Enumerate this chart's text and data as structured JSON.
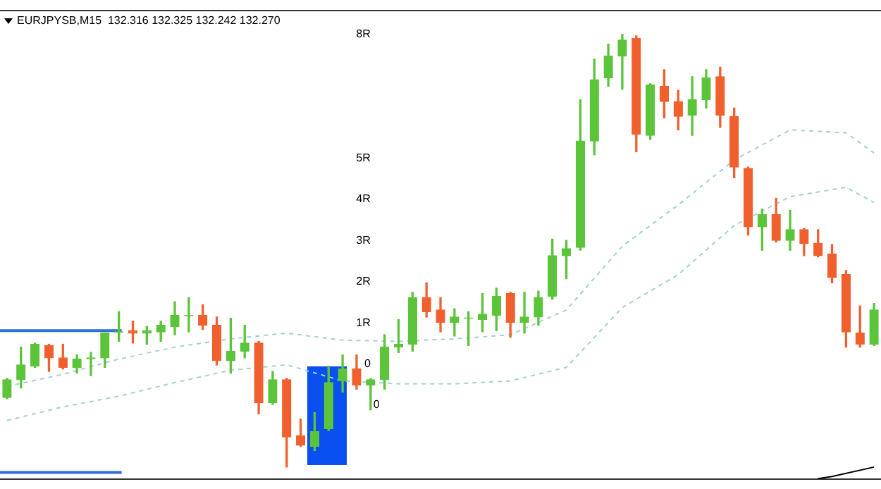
{
  "chart_data": {
    "type": "candlestick",
    "title": "EURJPYSB,M15  132.316 132.325 132.242 132.270",
    "categories": [
      null,
      null,
      null,
      null,
      null,
      null,
      null,
      null,
      null,
      null,
      null,
      null,
      null,
      null,
      null,
      null,
      null,
      null,
      null,
      null,
      null,
      null,
      null,
      null,
      null,
      null,
      null,
      null,
      null,
      null,
      null,
      null,
      null,
      null,
      null,
      null,
      null,
      null,
      null,
      null,
      null,
      null,
      null,
      null,
      null,
      null,
      null,
      null,
      null,
      null,
      null,
      null,
      null,
      null,
      null,
      null,
      null,
      null,
      null,
      null,
      null,
      null,
      null
    ],
    "ohlc": [
      [
        -0.81,
        -0.35,
        -0.84,
        -0.38
      ],
      [
        -0.38,
        0.41,
        -0.58,
        -0.02
      ],
      [
        -0.05,
        0.51,
        -0.08,
        0.48
      ],
      [
        0.45,
        0.48,
        -0.18,
        0.15
      ],
      [
        0.15,
        0.48,
        -0.12,
        -0.08
      ],
      [
        -0.08,
        0.22,
        -0.22,
        0.12
      ],
      [
        0.13,
        0.28,
        -0.28,
        0.15
      ],
      [
        0.15,
        0.75,
        -0.08,
        0.75
      ],
      [
        0.77,
        1.27,
        0.55,
        0.78
      ],
      [
        0.81,
        1.04,
        0.51,
        0.75
      ],
      [
        0.75,
        0.91,
        0.48,
        0.81
      ],
      [
        0.78,
        1.04,
        0.55,
        0.94
      ],
      [
        0.91,
        1.51,
        0.71,
        1.18
      ],
      [
        1.17,
        1.61,
        0.78,
        1.18
      ],
      [
        1.18,
        1.44,
        0.84,
        0.94
      ],
      [
        0.94,
        1.14,
        -0.02,
        0.08
      ],
      [
        0.08,
        1.11,
        -0.22,
        0.31
      ],
      [
        0.31,
        0.94,
        0.15,
        0.51
      ],
      [
        0.51,
        0.55,
        -1.21,
        -0.94
      ],
      [
        -0.94,
        -0.18,
        -0.98,
        -0.38
      ],
      [
        -0.38,
        -0.35,
        -2.5,
        -1.77
      ],
      [
        -1.74,
        -1.34,
        -2.0,
        -1.97
      ],
      [
        -2.0,
        -1.18,
        -2.1,
        -1.64
      ],
      [
        -1.57,
        -0.05,
        -1.61,
        -0.45
      ],
      [
        -0.41,
        0.22,
        -0.68,
        -0.12
      ],
      [
        -0.12,
        0.22,
        -0.61,
        -0.51
      ],
      [
        -0.51,
        -0.35,
        -1.11,
        -0.38
      ],
      [
        -0.38,
        0.71,
        -0.61,
        0.41
      ],
      [
        0.41,
        1.08,
        0.28,
        0.48
      ],
      [
        0.48,
        1.74,
        0.31,
        1.61
      ],
      [
        1.61,
        1.97,
        1.14,
        1.27
      ],
      [
        1.31,
        1.61,
        0.78,
        1.01
      ],
      [
        1.01,
        1.34,
        0.68,
        1.14
      ],
      [
        1.11,
        1.27,
        0.45,
        1.12
      ],
      [
        1.08,
        1.71,
        0.78,
        1.21
      ],
      [
        1.18,
        1.84,
        0.81,
        1.64
      ],
      [
        1.71,
        1.74,
        0.65,
        1.01
      ],
      [
        1.01,
        1.74,
        0.75,
        1.14
      ],
      [
        1.14,
        1.77,
        0.94,
        1.61
      ],
      [
        1.64,
        3.03,
        1.57,
        2.63
      ],
      [
        2.63,
        3.0,
        2.07,
        2.8
      ],
      [
        2.83,
        6.41,
        2.76,
        5.41
      ],
      [
        5.41,
        7.4,
        5.08,
        6.9
      ],
      [
        6.94,
        7.76,
        6.74,
        7.47
      ],
      [
        7.47,
        8.0,
        6.67,
        7.86
      ],
      [
        7.9,
        7.96,
        5.15,
        5.58
      ],
      [
        5.55,
        6.8,
        5.45,
        6.77
      ],
      [
        6.74,
        7.14,
        5.97,
        6.37
      ],
      [
        6.37,
        6.64,
        5.68,
        6.01
      ],
      [
        6.04,
        6.97,
        5.55,
        6.41
      ],
      [
        6.41,
        7.14,
        6.21,
        6.94
      ],
      [
        6.97,
        7.2,
        5.74,
        6.04
      ],
      [
        6.01,
        6.21,
        4.52,
        4.78
      ],
      [
        4.75,
        4.78,
        3.13,
        3.33
      ],
      [
        3.33,
        3.76,
        2.76,
        3.63
      ],
      [
        3.63,
        4.02,
        2.96,
        3.0
      ],
      [
        3.0,
        3.73,
        2.76,
        3.26
      ],
      [
        3.26,
        3.29,
        2.63,
        2.93
      ],
      [
        2.93,
        3.26,
        2.6,
        2.63
      ],
      [
        2.67,
        2.9,
        1.97,
        2.1
      ],
      [
        2.17,
        2.27,
        0.41,
        0.78
      ],
      [
        0.75,
        1.41,
        0.41,
        0.48
      ],
      [
        0.48,
        1.47,
        0.45,
        1.31
      ]
    ],
    "colors": [
      "#5cc43a",
      "#5cc43a",
      "#5cc43a",
      "#f0602e",
      "#f0602e",
      "#5cc43a",
      "#5cc43a",
      "#5cc43a",
      "#5cc43a",
      "#f0602e",
      "#5cc43a",
      "#5cc43a",
      "#5cc43a",
      "#5cc43a",
      "#f0602e",
      "#f0602e",
      "#5cc43a",
      "#5cc43a",
      "#f0602e",
      "#5cc43a",
      "#f0602e",
      "#f0602e",
      "#5cc43a",
      "#5cc43a",
      "#5cc43a",
      "#f0602e",
      "#5cc43a",
      "#5cc43a",
      "#5cc43a",
      "#5cc43a",
      "#f0602e",
      "#f0602e",
      "#5cc43a",
      "#5cc43a",
      "#5cc43a",
      "#5cc43a",
      "#f0602e",
      "#5cc43a",
      "#5cc43a",
      "#5cc43a",
      "#5cc43a",
      "#5cc43a",
      "#5cc43a",
      "#5cc43a",
      "#5cc43a",
      "#f0602e",
      "#5cc43a",
      "#f0602e",
      "#f0602e",
      "#5cc43a",
      "#5cc43a",
      "#f0602e",
      "#f0602e",
      "#f0602e",
      "#5cc43a",
      "#f0602e",
      "#5cc43a",
      "#f0602e",
      "#f0602e",
      "#f0602e",
      "#f0602e",
      "#f0602e",
      "#5cc43a"
    ],
    "series": [
      {
        "type": "line",
        "color": "#9fd3d0",
        "line_style": "dashed",
        "values": [
          -0.54,
          null,
          null,
          null,
          -0.25,
          null,
          null,
          null,
          0.12,
          null,
          null,
          null,
          0.41,
          null,
          null,
          null,
          0.61,
          null,
          null,
          null,
          0.75,
          null,
          null,
          null,
          0.58,
          null,
          null,
          null,
          0.55,
          null,
          null,
          null,
          0.61,
          null,
          null,
          null,
          0.71,
          null,
          null,
          null,
          1.31,
          null,
          null,
          null,
          2.86,
          null,
          null,
          null,
          3.86,
          null,
          null,
          null,
          4.95,
          null,
          null,
          null,
          5.68,
          null,
          null,
          null,
          5.61,
          null,
          5.12
        ]
      },
      {
        "type": "line",
        "color": "#9fd3d0",
        "line_style": "dashed",
        "values": [
          -1.37,
          null,
          null,
          null,
          -1.04,
          null,
          null,
          null,
          -0.78,
          null,
          null,
          null,
          -0.45,
          null,
          null,
          null,
          -0.15,
          null,
          null,
          null,
          -0.02,
          null,
          null,
          null,
          -0.41,
          null,
          null,
          null,
          -0.48,
          null,
          null,
          null,
          -0.48,
          null,
          null,
          null,
          -0.41,
          null,
          null,
          null,
          -0.08,
          null,
          null,
          null,
          1.37,
          null,
          null,
          null,
          2.17,
          null,
          null,
          null,
          3.36,
          null,
          null,
          null,
          4.06,
          null,
          null,
          null,
          4.29,
          null,
          3.92
        ]
      },
      {
        "type": "line",
        "color": "#000000",
        "line_style": "solid",
        "values": [
          null,
          null,
          null,
          null,
          null,
          null,
          null,
          null,
          null,
          null,
          null,
          null,
          null,
          null,
          null,
          null,
          null,
          null,
          null,
          null,
          null,
          null,
          null,
          null,
          null,
          null,
          null,
          null,
          null,
          null,
          null,
          null,
          null,
          null,
          null,
          null,
          null,
          null,
          null,
          null,
          null,
          null,
          null,
          null,
          null,
          null,
          null,
          null,
          null,
          null,
          null,
          null,
          null,
          null,
          null,
          null,
          null,
          null,
          -2.78,
          -2.73,
          null,
          null,
          -2.5
        ]
      }
    ],
    "ref_lines": [
      {
        "axis": "y",
        "value": 0.81,
        "color": "#2f6fd6"
      },
      {
        "axis": "y",
        "value": -2.63,
        "color": "#2f6fd6"
      }
    ],
    "ylim": [
      -2.8,
      8.6
    ],
    "yticks": [
      0,
      {
        "value": 1,
        "label": "1R"
      },
      {
        "value": 2,
        "label": "2R"
      },
      {
        "value": 3,
        "label": "3R"
      },
      {
        "value": 4,
        "label": "4R"
      },
      {
        "value": 5,
        "label": "5R"
      },
      {
        "value": 8,
        "label": "8R"
      }
    ],
    "annotations": [
      "0"
    ],
    "tick_labels": "y",
    "grid": false,
    "legend": false,
    "marker": "none"
  }
}
